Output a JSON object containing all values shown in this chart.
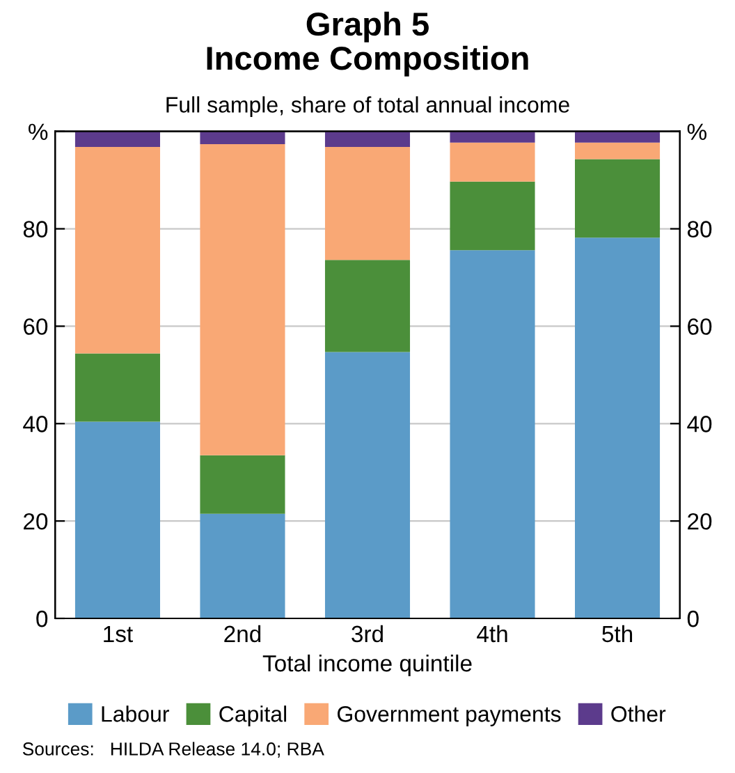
{
  "chart_data": {
    "type": "bar",
    "title": "Graph 5\nIncome Composition",
    "subtitle": "Full sample, share of total annual income",
    "xlabel": "Total income quintile",
    "categories": [
      "1st",
      "2nd",
      "3rd",
      "4th",
      "5th"
    ],
    "stacked": true,
    "series": [
      {
        "name": "Labour",
        "color": "#5b9bc8",
        "values": [
          40.4,
          21.5,
          54.7,
          75.6,
          78.2
        ]
      },
      {
        "name": "Capital",
        "color": "#4b8f3a",
        "values": [
          14.0,
          12.0,
          18.9,
          14.1,
          16.1
        ]
      },
      {
        "name": "Government payments",
        "color": "#f9a875",
        "values": [
          42.4,
          63.9,
          23.2,
          8.0,
          3.4
        ]
      },
      {
        "name": "Other",
        "color": "#5c3b8c",
        "values": [
          3.2,
          2.6,
          3.2,
          2.3,
          2.3
        ]
      }
    ],
    "ylim": [
      0,
      100
    ],
    "yticks": [
      0,
      20,
      40,
      60,
      80,
      {
        "value": 100,
        "label": "%"
      }
    ],
    "y2lim": [
      0,
      100
    ],
    "y2ticks": [
      0,
      20,
      40,
      60,
      80,
      {
        "value": 100,
        "label": "%"
      }
    ],
    "grid": "y",
    "legend": "bottom",
    "annotations": [
      "Sources:   HILDA Release 14.0; RBA"
    ]
  }
}
